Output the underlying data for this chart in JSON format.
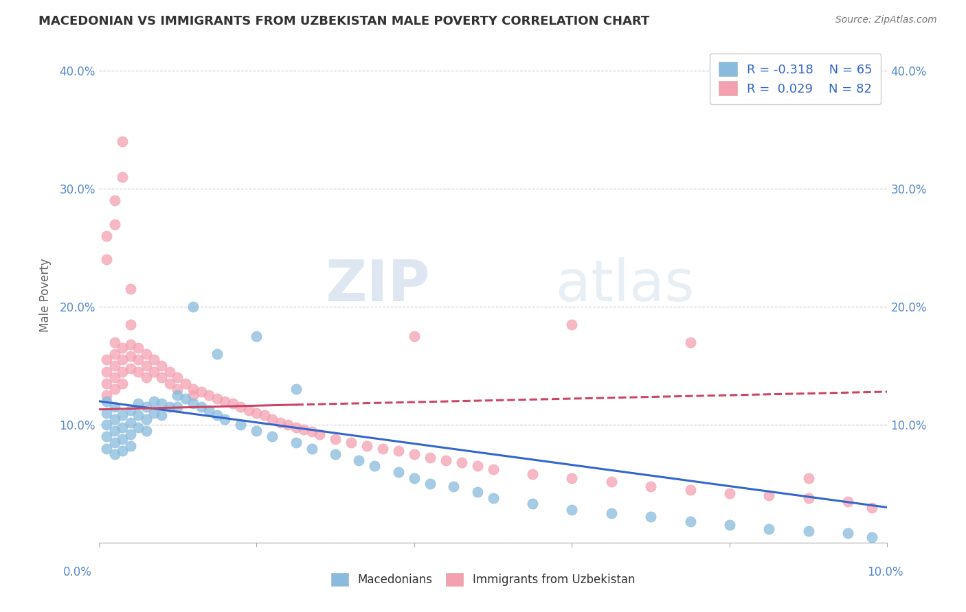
{
  "title": "MACEDONIAN VS IMMIGRANTS FROM UZBEKISTAN MALE POVERTY CORRELATION CHART",
  "source": "Source: ZipAtlas.com",
  "ylabel": "Male Poverty",
  "xlim": [
    0.0,
    0.1
  ],
  "ylim": [
    0.0,
    0.42
  ],
  "ytick_positions": [
    0.0,
    0.1,
    0.2,
    0.3,
    0.4
  ],
  "ytick_labels": [
    "",
    "10.0%",
    "20.0%",
    "30.0%",
    "40.0%"
  ],
  "blue_color": "#88bbdd",
  "pink_color": "#f4a0b0",
  "blue_line_color": "#3366cc",
  "pink_line_color": "#cc4466",
  "watermark_text": "ZIPatlas",
  "background_color": "#ffffff",
  "grid_color": "#cccccc",
  "macedonian_x": [
    0.001,
    0.001,
    0.001,
    0.001,
    0.001,
    0.002,
    0.002,
    0.002,
    0.002,
    0.002,
    0.003,
    0.003,
    0.003,
    0.003,
    0.004,
    0.004,
    0.004,
    0.004,
    0.005,
    0.005,
    0.005,
    0.006,
    0.006,
    0.006,
    0.007,
    0.007,
    0.008,
    0.008,
    0.009,
    0.01,
    0.01,
    0.011,
    0.012,
    0.013,
    0.014,
    0.015,
    0.016,
    0.018,
    0.02,
    0.022,
    0.025,
    0.027,
    0.03,
    0.033,
    0.035,
    0.038,
    0.04,
    0.042,
    0.045,
    0.048,
    0.05,
    0.055,
    0.06,
    0.065,
    0.07,
    0.075,
    0.08,
    0.085,
    0.09,
    0.095,
    0.098,
    0.012,
    0.015,
    0.02,
    0.025
  ],
  "macedonian_y": [
    0.12,
    0.11,
    0.1,
    0.09,
    0.08,
    0.115,
    0.105,
    0.095,
    0.085,
    0.075,
    0.108,
    0.098,
    0.088,
    0.078,
    0.112,
    0.102,
    0.092,
    0.082,
    0.118,
    0.108,
    0.098,
    0.115,
    0.105,
    0.095,
    0.12,
    0.11,
    0.118,
    0.108,
    0.115,
    0.125,
    0.115,
    0.122,
    0.118,
    0.115,
    0.112,
    0.108,
    0.105,
    0.1,
    0.095,
    0.09,
    0.085,
    0.08,
    0.075,
    0.07,
    0.065,
    0.06,
    0.055,
    0.05,
    0.048,
    0.043,
    0.038,
    0.033,
    0.028,
    0.025,
    0.022,
    0.018,
    0.015,
    0.012,
    0.01,
    0.008,
    0.005,
    0.2,
    0.16,
    0.175,
    0.13
  ],
  "uzbekistan_x": [
    0.001,
    0.001,
    0.001,
    0.001,
    0.002,
    0.002,
    0.002,
    0.002,
    0.002,
    0.003,
    0.003,
    0.003,
    0.003,
    0.004,
    0.004,
    0.004,
    0.005,
    0.005,
    0.005,
    0.006,
    0.006,
    0.006,
    0.007,
    0.007,
    0.008,
    0.008,
    0.009,
    0.009,
    0.01,
    0.01,
    0.011,
    0.012,
    0.012,
    0.013,
    0.014,
    0.015,
    0.016,
    0.017,
    0.018,
    0.019,
    0.02,
    0.021,
    0.022,
    0.023,
    0.024,
    0.025,
    0.026,
    0.027,
    0.028,
    0.03,
    0.032,
    0.034,
    0.036,
    0.038,
    0.04,
    0.042,
    0.044,
    0.046,
    0.048,
    0.05,
    0.055,
    0.06,
    0.065,
    0.07,
    0.075,
    0.08,
    0.085,
    0.09,
    0.095,
    0.098,
    0.001,
    0.001,
    0.002,
    0.002,
    0.003,
    0.003,
    0.004,
    0.004,
    0.04,
    0.06,
    0.075,
    0.09
  ],
  "uzbekistan_y": [
    0.155,
    0.145,
    0.135,
    0.125,
    0.17,
    0.16,
    0.15,
    0.14,
    0.13,
    0.165,
    0.155,
    0.145,
    0.135,
    0.168,
    0.158,
    0.148,
    0.165,
    0.155,
    0.145,
    0.16,
    0.15,
    0.14,
    0.155,
    0.145,
    0.15,
    0.14,
    0.145,
    0.135,
    0.14,
    0.13,
    0.135,
    0.13,
    0.125,
    0.128,
    0.125,
    0.122,
    0.12,
    0.118,
    0.115,
    0.112,
    0.11,
    0.108,
    0.105,
    0.102,
    0.1,
    0.098,
    0.096,
    0.094,
    0.092,
    0.088,
    0.085,
    0.082,
    0.08,
    0.078,
    0.075,
    0.072,
    0.07,
    0.068,
    0.065,
    0.062,
    0.058,
    0.055,
    0.052,
    0.048,
    0.045,
    0.042,
    0.04,
    0.038,
    0.035,
    0.03,
    0.26,
    0.24,
    0.29,
    0.27,
    0.31,
    0.34,
    0.215,
    0.185,
    0.175,
    0.185,
    0.17,
    0.055
  ]
}
